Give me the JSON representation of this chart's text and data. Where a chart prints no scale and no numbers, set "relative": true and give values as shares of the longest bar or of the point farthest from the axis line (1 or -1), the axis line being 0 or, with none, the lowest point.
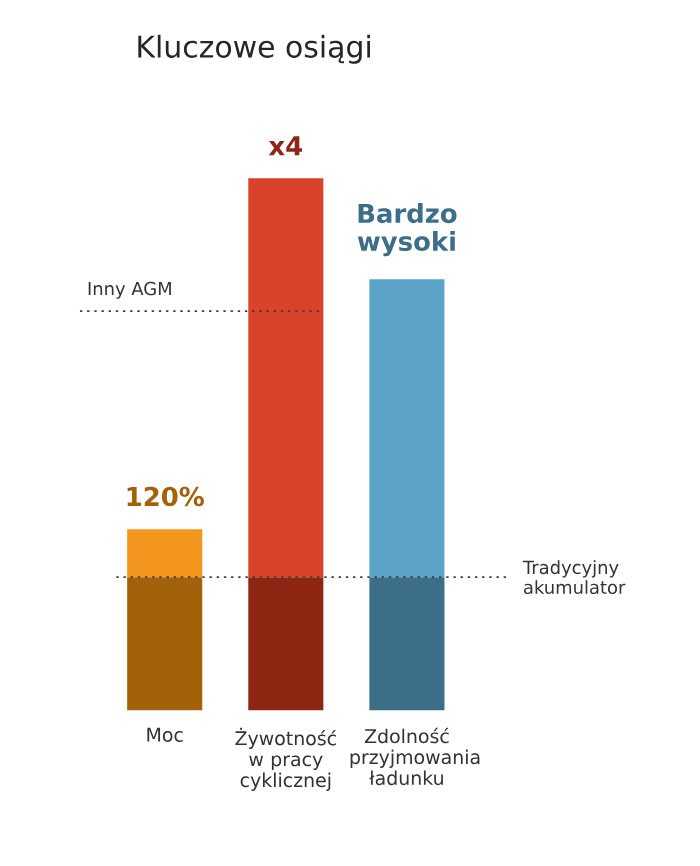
{
  "chart_data": {
    "type": "bar",
    "title": "Kluczowe osiągi",
    "categories": [
      "Moc",
      "Żywotność w pracy cyklicznej",
      "Zdolność przyjmowania ładunku"
    ],
    "relative": true,
    "stacked": true,
    "series": [
      {
        "colors": [
          "#a3620a",
          "#8e2614",
          "#3d6e88"
        ],
        "values": [
          0.25,
          0.25,
          0.25
        ]
      },
      {
        "colors": [
          "#f4951d",
          "#d9432a",
          "#5ba4c8"
        ],
        "values": [
          0.09,
          0.75,
          0.56
        ]
      }
    ],
    "annotations": [
      {
        "text": "120%",
        "x": "Moc",
        "y": 0.34
      },
      {
        "text": "x4",
        "x": "Żywotność w pracy cyklicznej",
        "y": 1.0
      },
      {
        "text": "Bardzo wysoki",
        "x": "Zdolność przyjmowania ładunku",
        "y": 0.81
      }
    ],
    "ref_lines": [
      {
        "axis": "y",
        "value": 0.25,
        "label": "Tradycyjny akumulator",
        "line_style": "dotted"
      },
      {
        "axis": "y",
        "value": 0.75,
        "label": "Inny AGM",
        "line_style": "dotted"
      }
    ]
  }
}
